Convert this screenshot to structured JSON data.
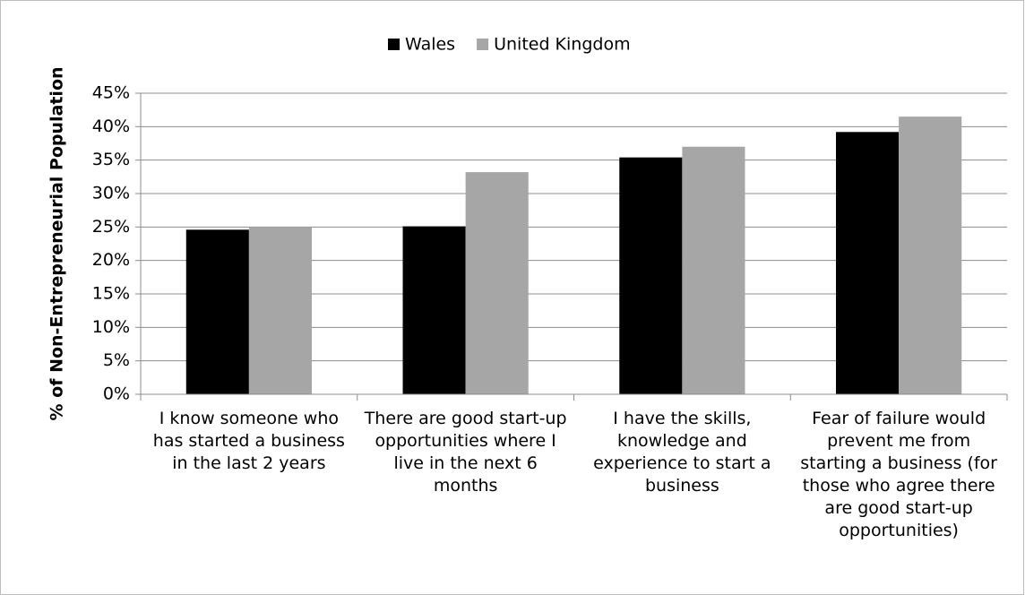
{
  "chart_data": {
    "type": "bar",
    "y_label": "% of Non-Entrepreneurial Population",
    "categories": [
      "I know someone who has started a business in the last 2 years",
      "There are good start-up opportunities where I live in the next 6 months",
      "I have the skills, knowledge and experience to start a business",
      "Fear of failure would prevent me from starting a business (for those who agree there are good start-up opportunities)"
    ],
    "series": [
      {
        "name": "Wales",
        "color": "#000000",
        "values": [
          24.6,
          25.1,
          35.4,
          39.2
        ]
      },
      {
        "name": "United Kingdom",
        "color": "#a6a6a6",
        "values": [
          25.0,
          33.2,
          37.0,
          41.5
        ]
      }
    ],
    "ylim": [
      0,
      45
    ],
    "yticks": [
      {
        "value": 0,
        "label": "0%"
      },
      {
        "value": 5,
        "label": "5%"
      },
      {
        "value": 10,
        "label": "10%"
      },
      {
        "value": 15,
        "label": "15%"
      },
      {
        "value": 20,
        "label": "20%"
      },
      {
        "value": 25,
        "label": "25%"
      },
      {
        "value": 30,
        "label": "30%"
      },
      {
        "value": 35,
        "label": "35%"
      },
      {
        "value": 40,
        "label": "40%"
      },
      {
        "value": 45,
        "label": "45%"
      }
    ],
    "grid": true,
    "legend": "top"
  }
}
